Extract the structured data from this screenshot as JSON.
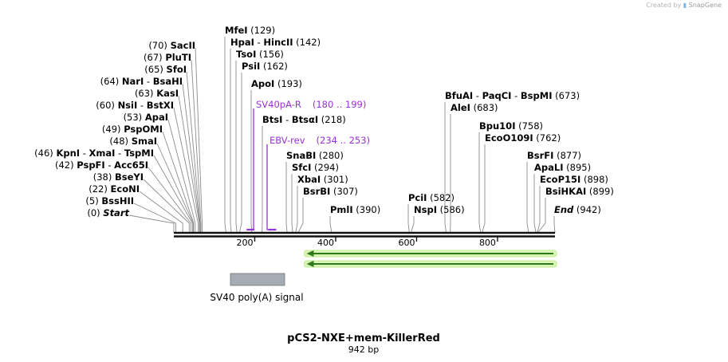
{
  "credit": {
    "prefix": "Created by",
    "brand": "SnapGene"
  },
  "map_title": "pCS2-NXE+mem-KillerRed",
  "map_length": "942 bp",
  "total_bp": 942,
  "ticks": [
    {
      "value": 200,
      "label": "200"
    },
    {
      "value": 400,
      "label": "400"
    },
    {
      "value": 600,
      "label": "600"
    },
    {
      "value": 800,
      "label": "800"
    }
  ],
  "sites_left": [
    {
      "pos": 70,
      "text": "(70)",
      "names": [
        "SacII"
      ]
    },
    {
      "pos": 67,
      "text": "(67)",
      "names": [
        "PluTI"
      ]
    },
    {
      "pos": 65,
      "text": "(65)",
      "names": [
        "SfoI"
      ]
    },
    {
      "pos": 64,
      "text": "(64)",
      "names": [
        "NarI",
        "BsaHI"
      ]
    },
    {
      "pos": 63,
      "text": "(63)",
      "names": [
        "KasI"
      ]
    },
    {
      "pos": 60,
      "text": "(60)",
      "names": [
        "NsiI",
        "BstXI"
      ]
    },
    {
      "pos": 53,
      "text": "(53)",
      "names": [
        "ApaI"
      ]
    },
    {
      "pos": 49,
      "text": "(49)",
      "names": [
        "PspOMI"
      ]
    },
    {
      "pos": 48,
      "text": "(48)",
      "names": [
        "SmaI"
      ]
    },
    {
      "pos": 46,
      "text": "(46)",
      "names": [
        "KpnI",
        "XmaI",
        "TspMI"
      ]
    },
    {
      "pos": 42,
      "text": "(42)",
      "names": [
        "PspFI",
        "Acc65I"
      ]
    },
    {
      "pos": 38,
      "text": "(38)",
      "names": [
        "BseYI"
      ]
    },
    {
      "pos": 22,
      "text": "(22)",
      "names": [
        "EcoNI"
      ]
    },
    {
      "pos": 5,
      "text": "(5)",
      "names": [
        "BssHII"
      ]
    },
    {
      "pos": 0,
      "text": "(0)",
      "names": [
        "Start"
      ],
      "italic": true
    }
  ],
  "sites_right": [
    {
      "pos": 129,
      "text": "(129)",
      "names": [
        "MfeI"
      ]
    },
    {
      "pos": 142,
      "text": "(142)",
      "names": [
        "HpaI",
        "HincII"
      ]
    },
    {
      "pos": 156,
      "text": "(156)",
      "names": [
        "TsoI"
      ]
    },
    {
      "pos": 162,
      "text": "(162)",
      "names": [
        "PsiI"
      ]
    },
    {
      "pos": 193,
      "text": "(193)",
      "names": [
        "ApoI"
      ]
    },
    {
      "pos": 218,
      "text": "(218)",
      "names": [
        "BtsI",
        "BtsαI"
      ]
    },
    {
      "pos": 280,
      "text": "(280)",
      "names": [
        "SnaBI"
      ]
    },
    {
      "pos": 294,
      "text": "(294)",
      "names": [
        "SfcI"
      ]
    },
    {
      "pos": 301,
      "text": "(301)",
      "names": [
        "XbaI"
      ]
    },
    {
      "pos": 307,
      "text": "(307)",
      "names": [
        "BsrBI"
      ]
    },
    {
      "pos": 390,
      "text": "(390)",
      "names": [
        "PmlI"
      ]
    },
    {
      "pos": 582,
      "text": "(582)",
      "names": [
        "PciI"
      ]
    },
    {
      "pos": 586,
      "text": "(586)",
      "names": [
        "NspI"
      ]
    },
    {
      "pos": 673,
      "text": "(673)",
      "names": [
        "BfuAI",
        "PaqCI",
        "BspMI"
      ]
    },
    {
      "pos": 683,
      "text": "(683)",
      "names": [
        "AleI"
      ]
    },
    {
      "pos": 758,
      "text": "(758)",
      "names": [
        "Bpu10I"
      ]
    },
    {
      "pos": 762,
      "text": "(762)",
      "names": [
        "EcoO109I"
      ]
    },
    {
      "pos": 877,
      "text": "(877)",
      "names": [
        "BsrFI"
      ]
    },
    {
      "pos": 895,
      "text": "(895)",
      "names": [
        "ApaLI"
      ]
    },
    {
      "pos": 898,
      "text": "(898)",
      "names": [
        "EcoP15I"
      ]
    },
    {
      "pos": 899,
      "text": "(899)",
      "names": [
        "BsiHKAI"
      ]
    },
    {
      "pos": 942,
      "text": "(942)",
      "names": [
        "End"
      ],
      "italic": true
    }
  ],
  "primers": [
    {
      "name": "SV40pA-R",
      "range": "(180 .. 199)",
      "start": 180,
      "end": 199
    },
    {
      "name": "EBV-rev",
      "range": "(234 .. 253)",
      "start": 234,
      "end": 253
    }
  ],
  "feature": {
    "label": "SV40 poly(A) signal",
    "color": "#a6acb3"
  },
  "orf_arrows": [
    {
      "start": 330,
      "end": 942,
      "color": "#d9f5b8",
      "edge": "#2f7a18"
    },
    {
      "start": 330,
      "end": 942,
      "color": "#d9f5b8",
      "edge": "#2f7a18"
    }
  ],
  "colors": {
    "primer": "#9b30d9",
    "line": "#8c8c8c",
    "backbone": "#111111"
  }
}
